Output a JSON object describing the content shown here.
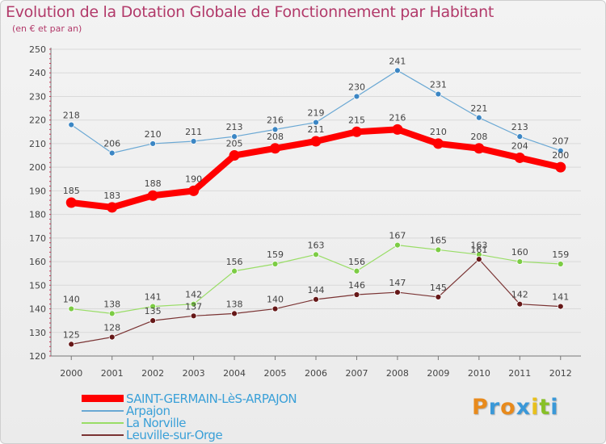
{
  "title": "Evolution de la Dotation Globale de Fonctionnement par Habitant",
  "subtitle": "(en € et par an)",
  "chart_data": {
    "type": "line",
    "title": "Evolution de la Dotation Globale de Fonctionnement par Habitant",
    "subtitle": "(en € et par an)",
    "x": [
      "2000",
      "2001",
      "2002",
      "2003",
      "2004",
      "2005",
      "2006",
      "2007",
      "2008",
      "2009",
      "2010",
      "2011",
      "2012"
    ],
    "y_ticks": [
      120,
      130,
      140,
      150,
      160,
      170,
      180,
      190,
      200,
      210,
      220,
      230,
      240,
      250
    ],
    "ylim": [
      120,
      250
    ],
    "grid": "horizontal",
    "legend_position": "bottom-left",
    "series": [
      {
        "name": "SAINT-GERMAIN-LèS-ARPAJON",
        "color": "#ff0000",
        "marker_color": "#ff0000",
        "values": [
          185,
          183,
          188,
          190,
          205,
          208,
          211,
          215,
          216,
          210,
          208,
          204,
          200
        ]
      },
      {
        "name": "Arpajon",
        "color": "#6aa8d4",
        "marker_color": "#3b86c4",
        "values": [
          218,
          206,
          210,
          211,
          213,
          216,
          219,
          230,
          241,
          231,
          221,
          213,
          207
        ]
      },
      {
        "name": "La Norville",
        "color": "#99dd66",
        "marker_color": "#7ccc44",
        "values": [
          140,
          138,
          141,
          142,
          156,
          159,
          163,
          156,
          167,
          165,
          163,
          160,
          159
        ]
      },
      {
        "name": "Leuville-sur-Orge",
        "color": "#7a3333",
        "marker_color": "#661818",
        "values": [
          125,
          128,
          135,
          137,
          138,
          140,
          144,
          146,
          147,
          145,
          161,
          142,
          141
        ]
      }
    ]
  },
  "legend": [
    {
      "label": "SAINT-GERMAIN-LèS-ARPAJON"
    },
    {
      "label": "Arpajon"
    },
    {
      "label": "La Norville"
    },
    {
      "label": "Leuville-sur-Orge"
    }
  ],
  "logo": {
    "letters": [
      {
        "ch": "P",
        "color": "#e88a1c"
      },
      {
        "ch": "r",
        "color": "#3a98d8"
      },
      {
        "ch": "o",
        "color": "#e88a1c"
      },
      {
        "ch": "x",
        "color": "#3a98d8"
      },
      {
        "ch": "i",
        "color": "#e8c01c"
      },
      {
        "ch": "t",
        "color": "#88c028"
      },
      {
        "ch": "i",
        "color": "#3a98d8"
      }
    ]
  }
}
